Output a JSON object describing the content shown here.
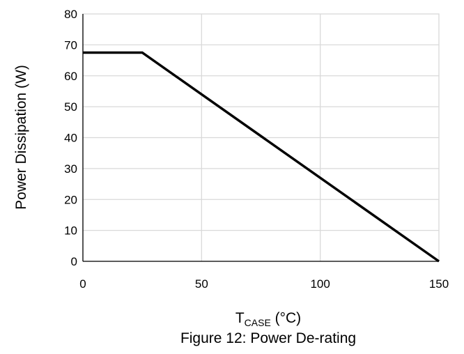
{
  "chart_data": {
    "type": "line",
    "title": "Figure 12: Power De-rating",
    "xlabel": {
      "main": "T",
      "subscript": "CASE",
      "suffix": " (°C)"
    },
    "ylabel": "Power Dissipation (W)",
    "xlim": [
      0,
      150
    ],
    "ylim": [
      0,
      80
    ],
    "x_ticks": [
      0,
      50,
      100,
      150
    ],
    "y_ticks": [
      0,
      10,
      20,
      30,
      40,
      50,
      60,
      70,
      80
    ],
    "grid": true,
    "legend": "none",
    "series": [
      {
        "color": "#000000",
        "x": [
          0,
          25,
          150
        ],
        "y": [
          67.5,
          67.5,
          0
        ]
      }
    ]
  },
  "colors": {
    "line": "#000000",
    "grid": "#d9d9d9",
    "axis": "#000000",
    "background": "#ffffff"
  }
}
